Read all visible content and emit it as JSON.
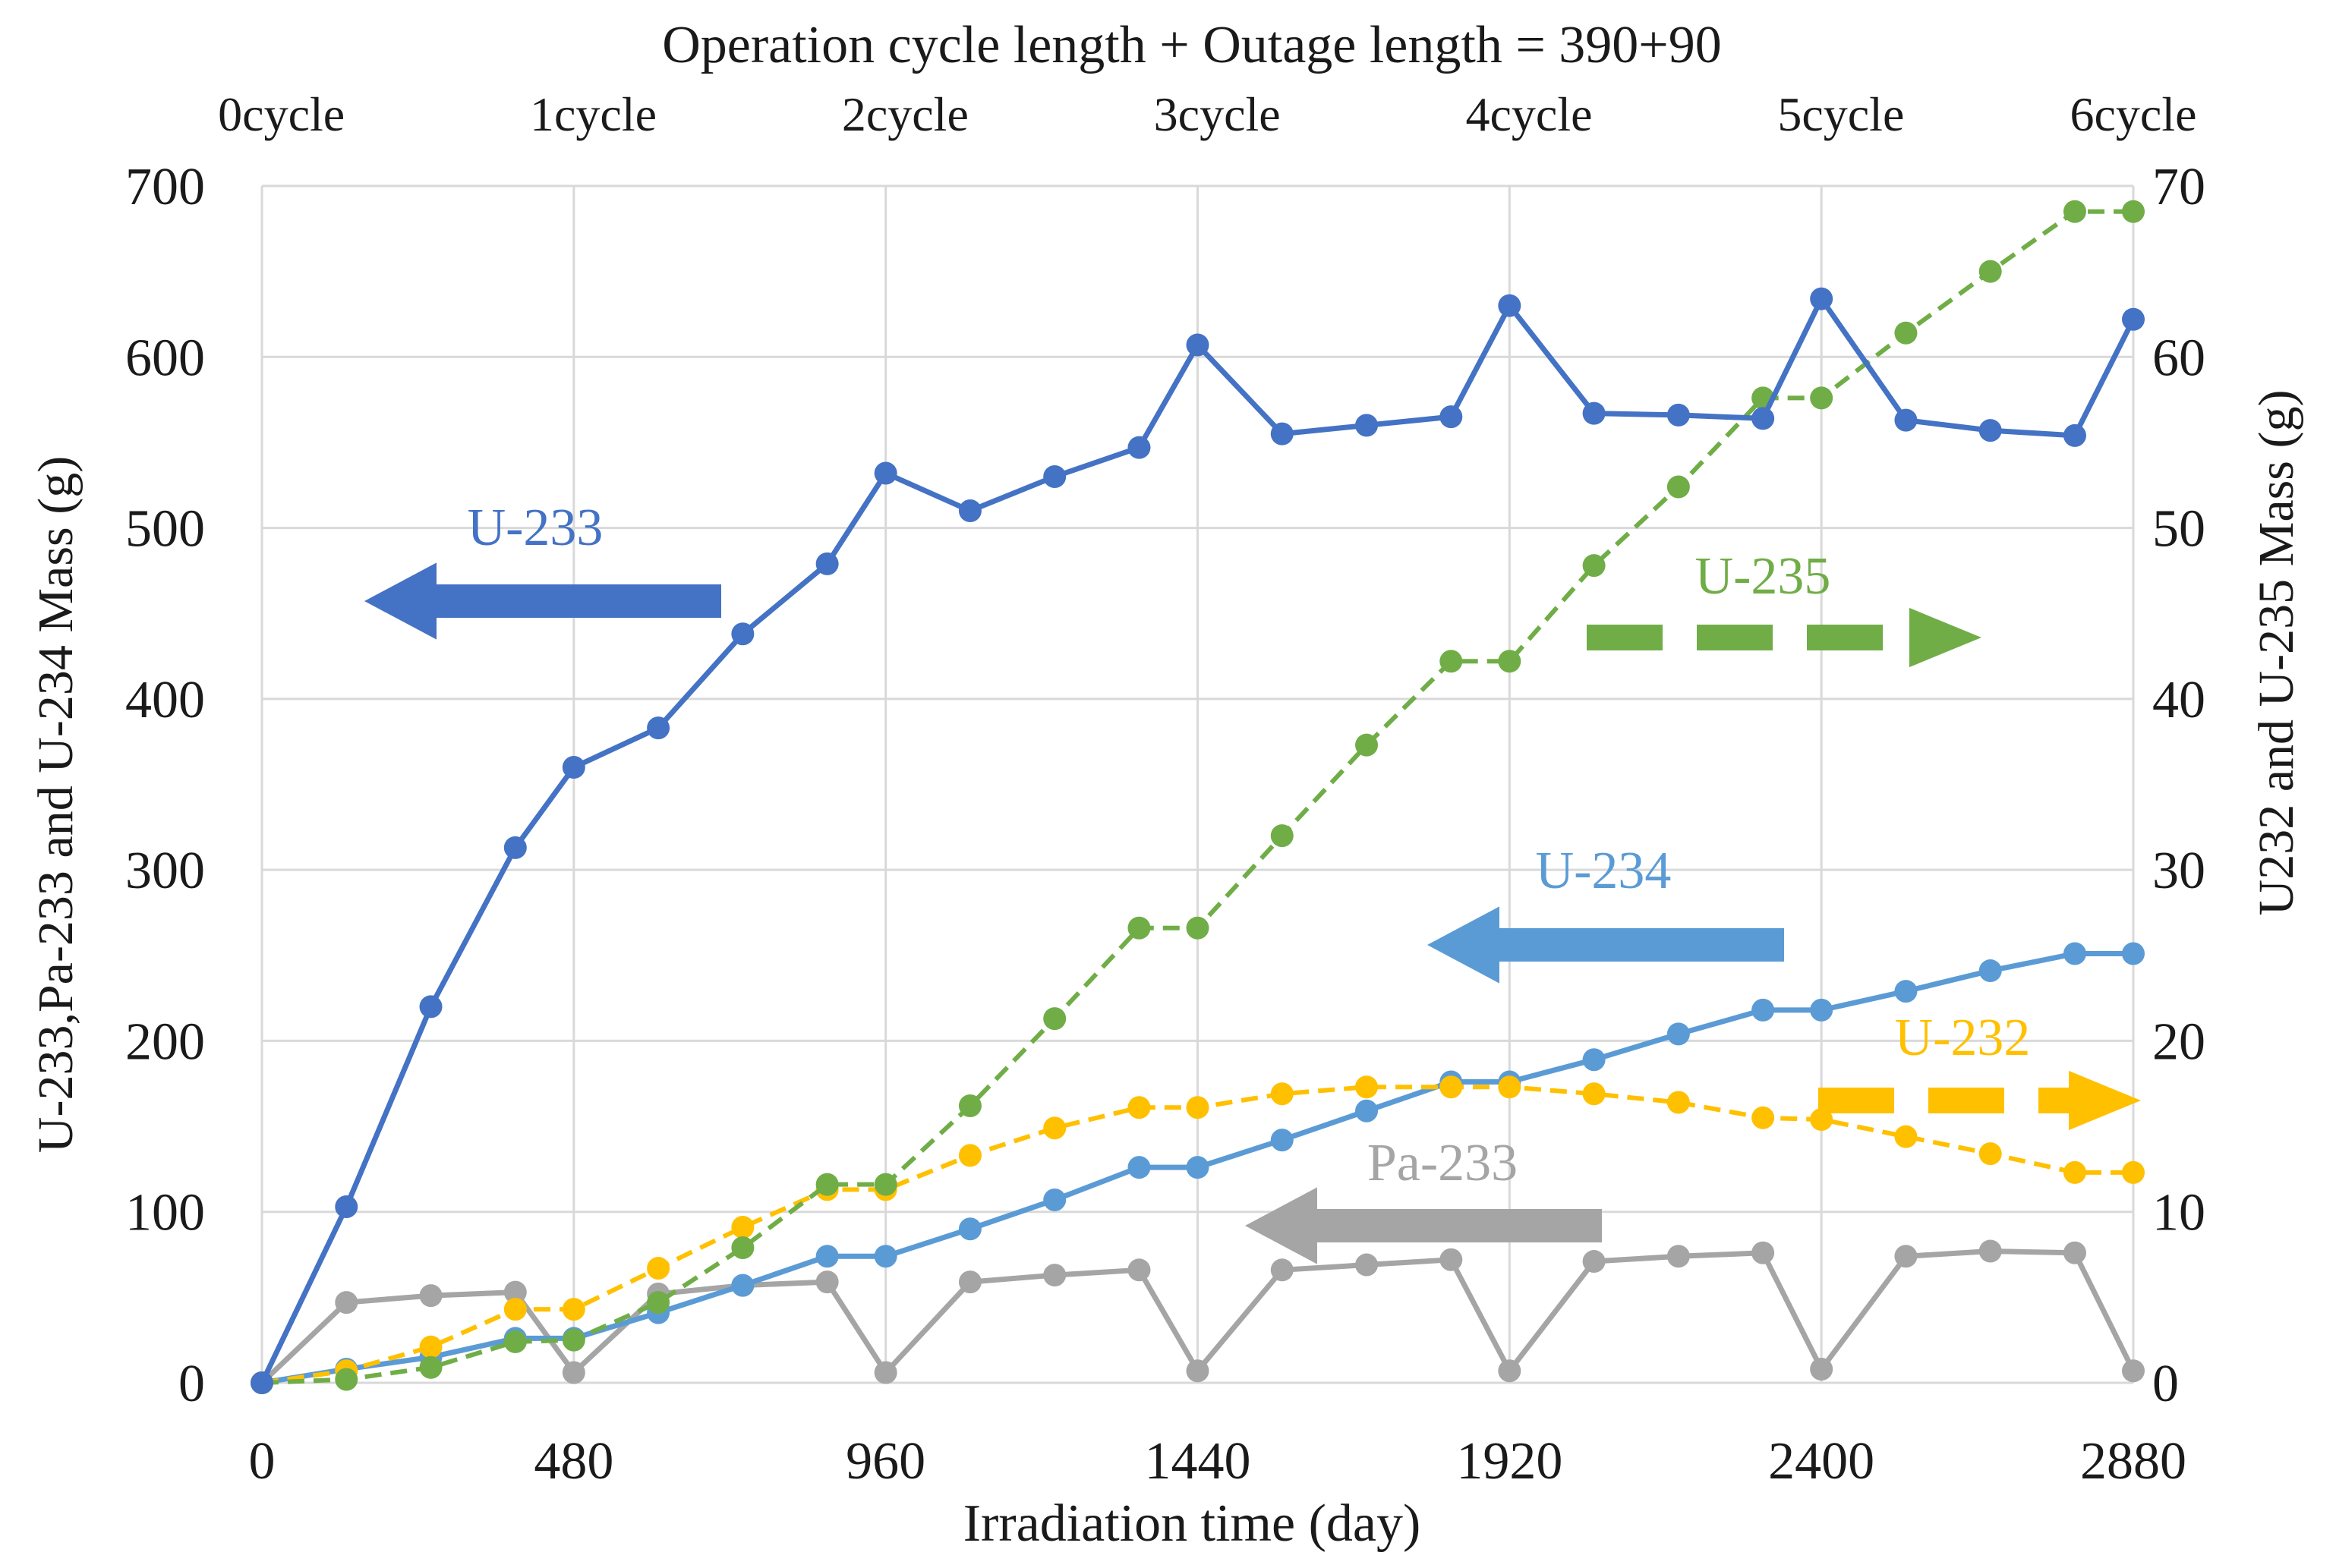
{
  "chart_data": {
    "type": "line",
    "title": "Operation cycle length + Outage length = 390+90",
    "xlabel": "Irradiation time (day)",
    "ylabel_left": "U-233,Pa-233  and U-234 Mass (g)",
    "ylabel_right": "U232 and U-235 Mass (g)",
    "xlim": [
      0,
      2880
    ],
    "ylim_left": [
      0,
      700
    ],
    "ylim_right": [
      0,
      70
    ],
    "x_ticks": [
      0,
      480,
      960,
      1440,
      1920,
      2400,
      2880
    ],
    "y_left_ticks": [
      0,
      100,
      200,
      300,
      400,
      500,
      600,
      700
    ],
    "y_right_ticks": [
      0,
      10,
      20,
      30,
      40,
      50,
      60,
      70
    ],
    "grid": true,
    "cycle_labels": [
      {
        "x": 30,
        "label": "0cycle"
      },
      {
        "x": 510,
        "label": "1cycle"
      },
      {
        "x": 990,
        "label": "2cycle"
      },
      {
        "x": 1470,
        "label": "3cycle"
      },
      {
        "x": 1950,
        "label": "4cycle"
      },
      {
        "x": 2430,
        "label": "5cycle"
      },
      {
        "x": 2880,
        "label": "6cycle"
      }
    ],
    "x": [
      0,
      130,
      260,
      390,
      480,
      610,
      740,
      870,
      960,
      1090,
      1220,
      1350,
      1440,
      1570,
      1700,
      1830,
      1920,
      2050,
      2180,
      2310,
      2400,
      2530,
      2660,
      2790,
      2880
    ],
    "series": [
      {
        "name": "U-233",
        "axis": "left",
        "color": "#4472c4",
        "dashed": false,
        "values": [
          0,
          103,
          220,
          313,
          360,
          383,
          438,
          479,
          532,
          510,
          530,
          547,
          607,
          555,
          560,
          565,
          630,
          567,
          566,
          564,
          634,
          563,
          557,
          554,
          622
        ]
      },
      {
        "name": "U-234",
        "axis": "left",
        "color": "#5b9bd5",
        "dashed": false,
        "values": [
          0,
          8,
          15,
          26,
          26,
          41,
          57,
          74,
          74,
          90,
          107,
          126,
          126,
          142,
          159,
          176,
          176,
          189,
          204,
          218,
          218,
          229,
          241,
          251,
          251
        ]
      },
      {
        "name": "Pa-233",
        "axis": "left",
        "color": "#a5a5a5",
        "dashed": false,
        "values": [
          0,
          47,
          51,
          53,
          6,
          52,
          57,
          59,
          6,
          59,
          63,
          66,
          7,
          66,
          69,
          72,
          7,
          71,
          74,
          76,
          8,
          74,
          77,
          76,
          7
        ]
      },
      {
        "name": "U-235",
        "axis": "right",
        "color": "#70ad47",
        "dashed": true,
        "values": [
          0,
          0.2,
          0.9,
          2.4,
          2.5,
          4.7,
          7.9,
          11.6,
          11.6,
          16.2,
          21.3,
          26.6,
          26.6,
          32.0,
          37.3,
          42.2,
          42.2,
          47.8,
          52.4,
          57.6,
          57.6,
          61.4,
          65.0,
          68.5,
          68.5
        ]
      },
      {
        "name": "U-232",
        "axis": "right",
        "color": "#ffc000",
        "dashed": true,
        "values": [
          0,
          0.7,
          2.1,
          4.3,
          4.3,
          6.7,
          9.1,
          11.3,
          11.3,
          13.3,
          14.9,
          16.1,
          16.1,
          16.9,
          17.3,
          17.3,
          17.3,
          16.9,
          16.4,
          15.5,
          15.4,
          14.4,
          13.4,
          12.3,
          12.3
        ]
      }
    ],
    "annotations": [
      {
        "label": "U-233",
        "color": "#4472c4",
        "direction": "left",
        "dashed": false
      },
      {
        "label": "U-235",
        "color": "#70ad47",
        "direction": "right",
        "dashed": true
      },
      {
        "label": "U-234",
        "color": "#5b9bd5",
        "direction": "left",
        "dashed": false
      },
      {
        "label": "U-232",
        "color": "#ffc000",
        "direction": "right",
        "dashed": true
      },
      {
        "label": "Pa-233",
        "color": "#a5a5a5",
        "direction": "left",
        "dashed": false
      }
    ]
  }
}
